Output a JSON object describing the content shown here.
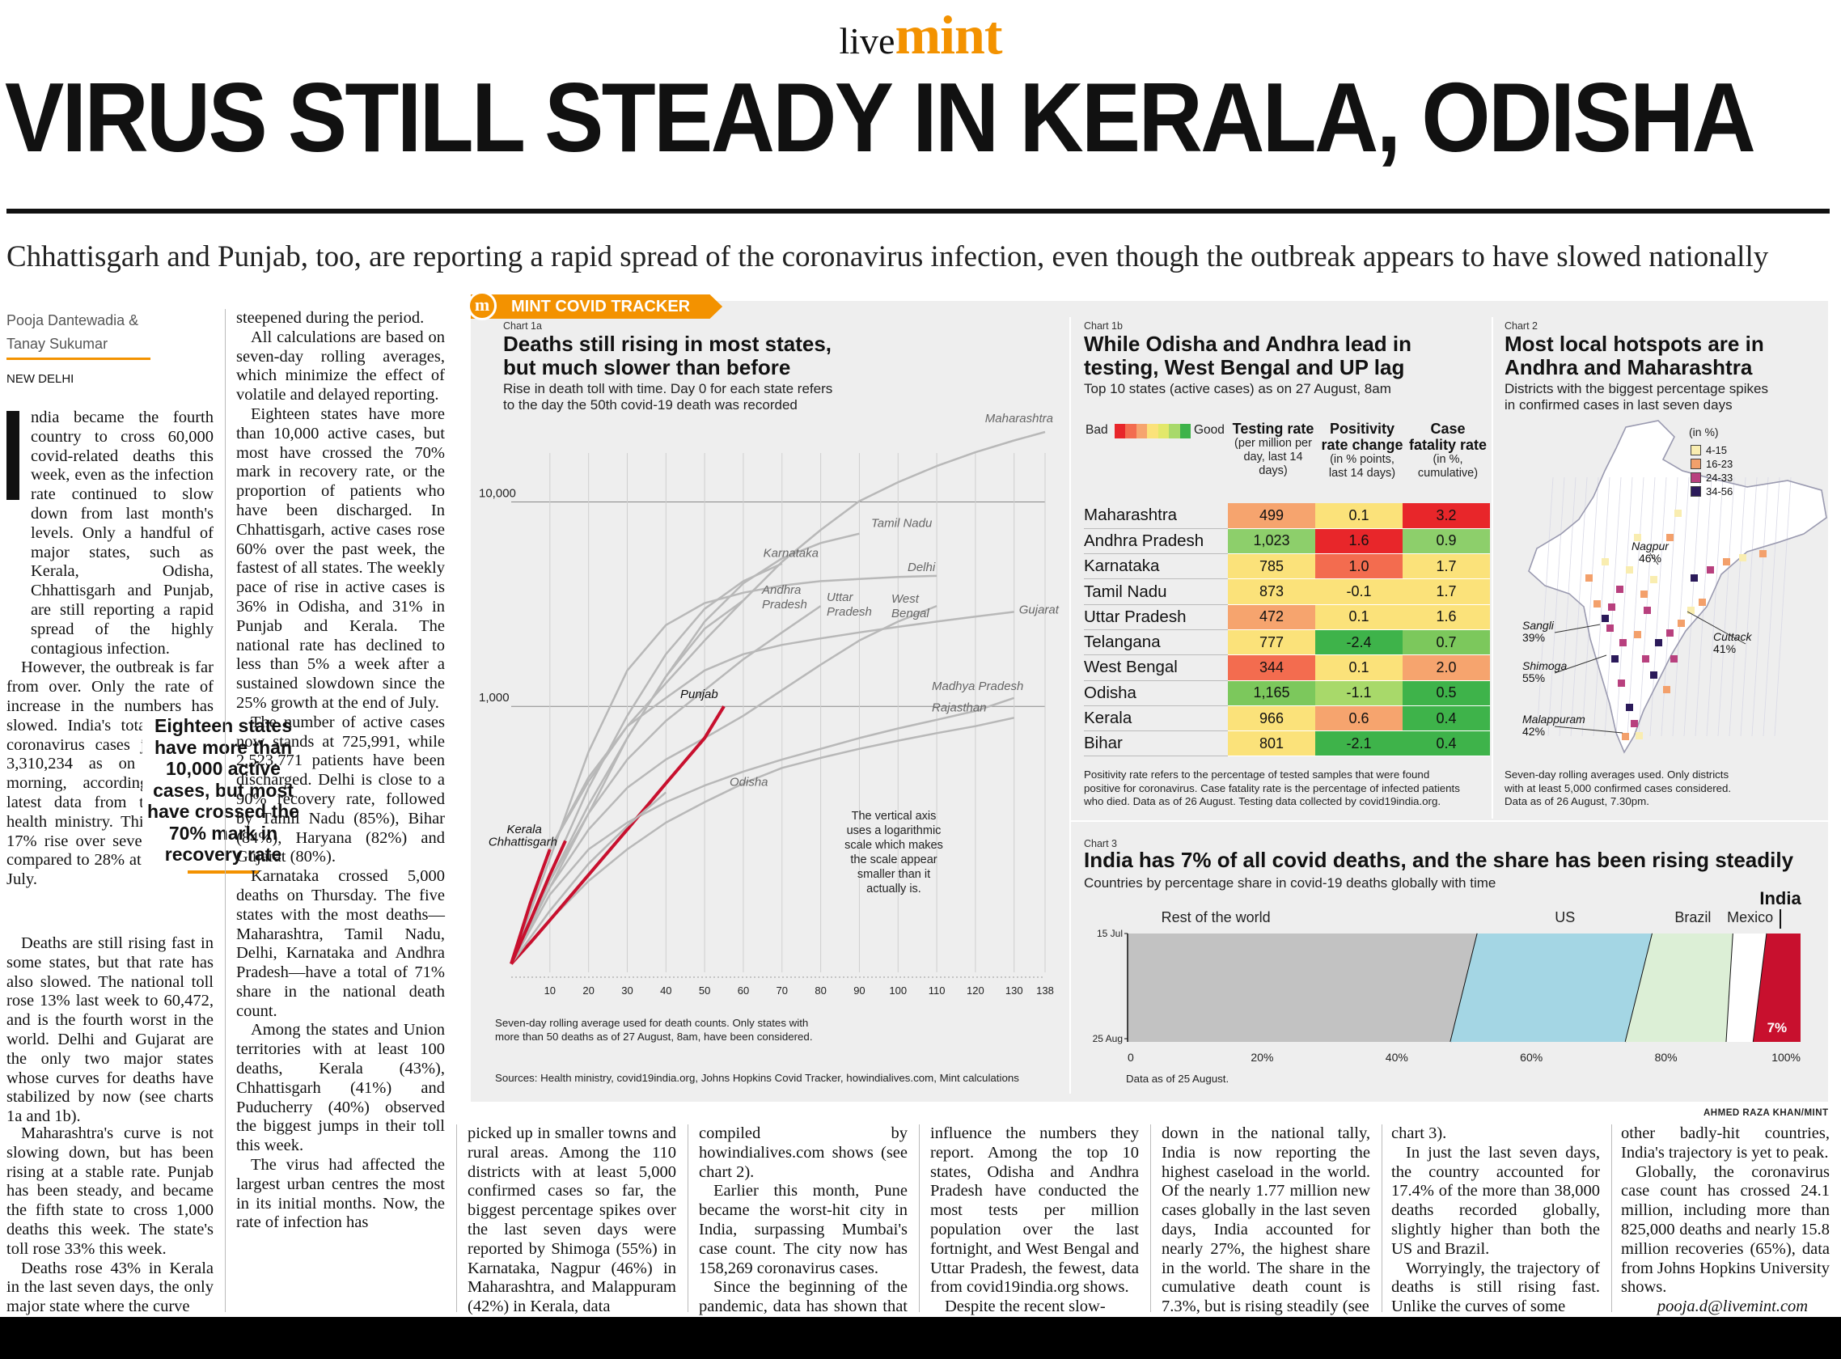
{
  "masthead": {
    "live": "live",
    "mint": "mint"
  },
  "headline": "VIRUS STILL STEADY IN KERALA, ODISHA",
  "subhead": "Chhattisgarh and Punjab, too, are reporting a rapid spread of the coronavirus infection, even though the outbreak appears to have slowed nationally",
  "byline": {
    "author1": "Pooja Dantewadia &",
    "author2": "Tanay Sukumar",
    "dateline": "NEW DELHI"
  },
  "pullquote": "Eighteen states have more than 10,000 active cases, but most have crossed the 70% mark in recovery rate",
  "article": {
    "col1a": "ndia became the fourth country to cross 60,000 covid-related deaths this week, even as the infection rate continued to slow down from last month's levels. Only a handful of major states, such as Kerala, Odisha, Chhattisgarh and Punjab, are still reporting a rapid spread of the highly contagious infection.",
    "col1b": "However, the outbreak is far from over. Only the rate of increase in the numbers has slowed. India's total tally of coronavirus cases jumped to 3,310,234 as on Thursday morning, according to the latest data from the Union health ministry. This marks a 17% rise over seven days, as compared to 28% at the end of July.",
    "col1c": "Deaths are still rising fast in some states, but that rate has also slowed. The national toll rose 13% last week to 60,472, and is the fourth worst in the world. Delhi and Gujarat are the only two major states whose curves for deaths have stabilized by now (see charts 1a and 1b).",
    "col1d": "Maharashtra's curve is not slowing down, but has been rising at a stable rate. Punjab has been steady, and became the fifth state to cross 1,000 deaths this week. The state's toll rose 33% this week.",
    "col1e": "Deaths rose 43% in Kerala in the last seven days, the only major state where the curve",
    "col2a": "steepened during the period.",
    "col2b": "All calculations are based on seven-day rolling averages, which minimize the effect of volatile and delayed reporting.",
    "col2c": "Eighteen states have more than 10,000 active cases, but most have crossed the 70% mark in recovery rate, or the proportion of patients who have been discharged. In Chhattisgarh, active cases rose 60% over the past week, the fastest of all states. The weekly pace of rise in active cases is 36% in Odisha, and 31% in Punjab and Kerala. The national rate has declined to less than 5% a week after a sustained slowdown since the 25% growth at the end of July.",
    "col2d": "The number of active cases now stands at 725,991, while 2,523,771 patients have been discharged. Delhi is close to a 90% recovery rate, followed by Tamil Nadu (85%), Bihar (84%), Haryana (82%) and Gujarat (80%).",
    "col2e": "Karnataka crossed 5,000 deaths on Thursday. The five states with the most deaths—Maharashtra, Tamil Nadu, Delhi, Karnataka and Andhra Pradesh—have a total of 71% share in the national death count.",
    "col2f": "Among the states and Union territories with at least 100 deaths, Kerala (43%), Chhattisgarh (41%) and Puducherry (40%) observed the biggest jumps in their toll this week.",
    "col2g": "The virus had affected the largest urban centres the most in its initial months. Now, the rate of infection has",
    "col3": "picked up in smaller towns and rural areas. Among the 110 districts with at least 5,000 confirmed cases so far, the biggest percentage spikes over the last seven days were reported by Shimoga (55%) in Karnataka, Nagpur (46%) in Maharashtra, and Malappuram (42%) in Kerala, data",
    "col4a": "compiled by howindialives.com shows (see chart 2).",
    "col4b": "Earlier this month, Pune became the worst-hit city in India, surpassing Mumbai's case count. The city now has 158,269 coronavirus cases.",
    "col4c": "Since the beginning of the pandemic, data has shown that testing strategies of states can",
    "col5a": "influence the numbers they report. Among the top 10 states, Odisha and Andhra Pradesh have conducted the most tests per million population over the last fortnight, and West Bengal and Uttar Pradesh, the fewest, data from covid19india.org shows.",
    "col5b": "Despite the recent slow-",
    "col6a": "down in the national tally, India is now reporting the highest caseload in the world. Of the nearly 1.77 million new cases globally in the last seven days, India accounted for nearly 27%, the highest share in the world. The share in the cumulative death count is 7.3%, but is rising steadily (see",
    "col7a": "chart 3).",
    "col7b": "In just the last seven days, the country accounted for 17.4% of the more than 38,000 deaths recorded globally, slightly higher than both the US and Brazil.",
    "col7c": "Worryingly, the trajectory of deaths is still rising fast. Unlike the curves of some",
    "col8a": "other badly-hit countries, India's trajectory is yet to peak.",
    "col8b": "Globally, the coronavirus case count has crossed 24.1 million, including more than 825,000 deaths and nearly 15.8 million recoveries (65%), data from Johns Hopkins University shows.",
    "col8c": "pooja.d@livemint.com"
  },
  "tracker": {
    "tag": "MINT COVID TRACKER",
    "logo": "m",
    "source": "Sources: Health ministry, covid19india.org, Johns Hopkins Covid Tracker, howindialives.com, Mint calculations",
    "credit": "AHMED RAZA KHAN/MINT"
  },
  "chart1a": {
    "tag": "Chart 1a",
    "title1": "Deaths still rising in most states,",
    "title2": "but much slower than before",
    "sub1": "Rise in death toll with time. Day 0 for each state refers",
    "sub2": "to the day the 50th covid-19 death was recorded",
    "note1": "Seven-day rolling average used for death counts. Only states with",
    "note2": "more than 50 deaths as of 27 August, 8am, have been considered.",
    "annotation": [
      "The vertical axis",
      "uses a logarithmic",
      "scale which makes",
      "the scale appear",
      "smaller than it",
      "actually is."
    ]
  },
  "chart1b": {
    "tag": "Chart 1b",
    "title1": "While Odisha and Andhra lead in",
    "title2": "testing, West Bengal and UP lag",
    "sub": "Top 10 states (active cases) as on 27 August, 8am",
    "bad": "Bad",
    "good": "Good",
    "headers": [
      {
        "title": "Testing rate",
        "sub": "(per million per day, last 14 days)"
      },
      {
        "title": "Positivity rate change",
        "sub": "(in % points, last 14 days)"
      },
      {
        "title": "Case fatality rate",
        "sub": "(in %, cumulative)"
      }
    ],
    "rows": [
      {
        "state": "Maharashtra",
        "testing": "499",
        "positivity": "0.1",
        "cfr": "3.2",
        "c": [
          "#f6a46e",
          "#fbe27a",
          "#e8262a"
        ]
      },
      {
        "state": "Andhra Pradesh",
        "testing": "1,023",
        "positivity": "1.6",
        "cfr": "0.9",
        "c": [
          "#8dcf6b",
          "#e8262a",
          "#8dcf6b"
        ]
      },
      {
        "state": "Karnataka",
        "testing": "785",
        "positivity": "1.0",
        "cfr": "1.7",
        "c": [
          "#fbe27a",
          "#f36c4f",
          "#fbe27a"
        ]
      },
      {
        "state": "Tamil Nadu",
        "testing": "873",
        "positivity": "-0.1",
        "cfr": "1.7",
        "c": [
          "#fbe27a",
          "#fbe27a",
          "#fbe27a"
        ]
      },
      {
        "state": "Uttar Pradesh",
        "testing": "472",
        "positivity": "0.1",
        "cfr": "1.6",
        "c": [
          "#f6a46e",
          "#fbe27a",
          "#fbe27a"
        ]
      },
      {
        "state": "Telangana",
        "testing": "777",
        "positivity": "-2.4",
        "cfr": "0.7",
        "c": [
          "#fbe27a",
          "#3eb34a",
          "#7cc85c"
        ]
      },
      {
        "state": "West Bengal",
        "testing": "344",
        "positivity": "0.1",
        "cfr": "2.0",
        "c": [
          "#f36c4f",
          "#fbe27a",
          "#f6a46e"
        ]
      },
      {
        "state": "Odisha",
        "testing": "1,165",
        "positivity": "-1.1",
        "cfr": "0.5",
        "c": [
          "#7cc85c",
          "#a8d96a",
          "#3eb34a"
        ]
      },
      {
        "state": "Kerala",
        "testing": "966",
        "positivity": "0.6",
        "cfr": "0.4",
        "c": [
          "#fbe27a",
          "#f6a46e",
          "#3eb34a"
        ]
      },
      {
        "state": "Bihar",
        "testing": "801",
        "positivity": "-2.1",
        "cfr": "0.4",
        "c": [
          "#fbe27a",
          "#3eb34a",
          "#3eb34a"
        ]
      }
    ],
    "scale_colors": [
      "#e8262a",
      "#f36c4f",
      "#f6a46e",
      "#fbe27a",
      "#e2e86a",
      "#a8d96a",
      "#3eb34a"
    ],
    "note1": "Positivity rate refers to the percentage of tested samples that were found",
    "note2": "positive for coronavirus. Case fatality rate is the percentage of infected patients",
    "note3": "who died. Data as of 26 August. Testing data collected by covid19india.org."
  },
  "chart2": {
    "tag": "Chart 2",
    "title1": "Most local hotspots are in",
    "title2": "Andhra and Maharashtra",
    "sub1": "Districts with the biggest percentage spikes",
    "sub2": "in confirmed cases in last seven days",
    "legend_title": "(in %)",
    "legend": [
      {
        "label": "4-15",
        "color": "#f9edb0"
      },
      {
        "label": "16-23",
        "color": "#f3a06b"
      },
      {
        "label": "24-33",
        "color": "#b8407e"
      },
      {
        "label": "34-56",
        "color": "#2b1a5a"
      }
    ],
    "callouts": [
      {
        "name": "Nagpur",
        "pct": "46%"
      },
      {
        "name": "Sangli",
        "pct": "39%"
      },
      {
        "name": "Cuttack",
        "pct": "41%"
      },
      {
        "name": "Shimoga",
        "pct": "55%"
      },
      {
        "name": "Malappuram",
        "pct": "42%"
      }
    ],
    "note1": "Seven-day rolling averages used. Only districts",
    "note2": "with at least 5,000 confirmed cases considered.",
    "note3": "Data as of 26 August, 7.30pm."
  },
  "chart3": {
    "tag": "Chart 3",
    "title": "India has 7% of all covid deaths, and the share has been rising steadily",
    "sub": "Countries by percentage share in covid-19 deaths globally with time",
    "note": "Data as of 25 August.",
    "india_label": "India",
    "india_value": "7%"
  },
  "chart_data": [
    {
      "type": "line",
      "title": "Deaths still rising in most states, but much slower than before",
      "xlabel": "",
      "ylabel": "",
      "x_ticks": [
        10,
        20,
        30,
        40,
        50,
        60,
        70,
        80,
        90,
        100,
        110,
        120,
        130,
        138
      ],
      "xlim": [
        0,
        138
      ],
      "y_ticks": [
        "1,000",
        "10,000"
      ],
      "ylim": [
        50,
        30000
      ],
      "y_scale": "log",
      "grid": true,
      "series": [
        {
          "name": "Maharashtra",
          "x": [
            0,
            10,
            20,
            30,
            40,
            50,
            60,
            70,
            80,
            90,
            100,
            110,
            120,
            130,
            138
          ],
          "y": [
            55,
            200,
            430,
            800,
            1300,
            2100,
            3300,
            5100,
            7300,
            10100,
            12500,
            15000,
            17500,
            20000,
            22000
          ]
        },
        {
          "name": "Tamil Nadu",
          "x": [
            0,
            10,
            20,
            30,
            40,
            50,
            60,
            70,
            80,
            90
          ],
          "y": [
            55,
            140,
            330,
            700,
            1400,
            2600,
            4000,
            5300,
            6300,
            7000
          ]
        },
        {
          "name": "Karnataka",
          "x": [
            0,
            10,
            20,
            30,
            40,
            50,
            60,
            70
          ],
          "y": [
            55,
            150,
            400,
            900,
            1800,
            3000,
            4100,
            5000
          ]
        },
        {
          "name": "Delhi",
          "x": [
            0,
            10,
            20,
            30,
            40,
            50,
            60,
            70,
            80,
            90,
            100,
            110
          ],
          "y": [
            55,
            180,
            600,
            1500,
            2500,
            3200,
            3600,
            3900,
            4100,
            4200,
            4300,
            4350
          ]
        },
        {
          "name": "Andhra Pradesh",
          "x": [
            0,
            10,
            20,
            30,
            40,
            50,
            60
          ],
          "y": [
            55,
            130,
            300,
            700,
            1400,
            2400,
            3300
          ]
        },
        {
          "name": "Uttar Pradesh",
          "x": [
            0,
            10,
            20,
            30,
            40,
            50,
            60,
            70,
            80
          ],
          "y": [
            55,
            140,
            300,
            550,
            850,
            1200,
            1700,
            2300,
            3100
          ]
        },
        {
          "name": "West Bengal",
          "x": [
            0,
            10,
            20,
            30,
            40,
            50,
            60,
            70,
            80,
            90,
            100,
            110
          ],
          "y": [
            55,
            130,
            250,
            400,
            550,
            700,
            900,
            1200,
            1600,
            2100,
            2600,
            3100
          ]
        },
        {
          "name": "Gujarat",
          "x": [
            0,
            10,
            20,
            30,
            40,
            50,
            60,
            70,
            80,
            90,
            100,
            110,
            120,
            130
          ],
          "y": [
            55,
            200,
            450,
            800,
            1100,
            1500,
            1800,
            2000,
            2150,
            2300,
            2450,
            2600,
            2750,
            2900
          ]
        },
        {
          "name": "Madhya Pradesh",
          "x": [
            0,
            10,
            20,
            30,
            40,
            50,
            60,
            70,
            80,
            90,
            100,
            110,
            120,
            130
          ],
          "y": [
            55,
            120,
            200,
            270,
            340,
            410,
            480,
            550,
            620,
            700,
            780,
            860,
            950,
            1100
          ]
        },
        {
          "name": "Rajasthan",
          "x": [
            0,
            10,
            20,
            30,
            40,
            50,
            60,
            70,
            80,
            90,
            100,
            110,
            120,
            130
          ],
          "y": [
            55,
            90,
            140,
            200,
            270,
            340,
            420,
            500,
            560,
            620,
            680,
            740,
            800,
            880
          ]
        },
        {
          "name": "Punjab",
          "x": [
            0,
            5,
            10,
            20,
            30,
            40,
            50,
            55
          ],
          "y": [
            55,
            70,
            90,
            150,
            250,
            420,
            700,
            1000
          ]
        },
        {
          "name": "Odisha",
          "x": [
            0,
            10,
            20,
            30,
            40
          ],
          "y": [
            55,
            100,
            170,
            260,
            380
          ]
        },
        {
          "name": "Kerala",
          "x": [
            0,
            5,
            10
          ],
          "y": [
            55,
            110,
            200
          ]
        },
        {
          "name": "Chhattisgarh",
          "x": [
            0,
            5,
            10,
            14
          ],
          "y": [
            55,
            90,
            150,
            220
          ]
        }
      ]
    },
    {
      "type": "area",
      "title": "India has 7% of all covid deaths, and the share has been rising steadily",
      "x_ticks": [
        "0",
        "20%",
        "40%",
        "60%",
        "80%",
        "100%"
      ],
      "xlim": [
        0,
        100
      ],
      "y_ticks": [
        "15 Jul",
        "25 Aug"
      ],
      "series": [
        {
          "name": "Rest of the world",
          "start": 52,
          "end": 48
        },
        {
          "name": "US",
          "start": 26,
          "end": 26
        },
        {
          "name": "Brazil",
          "start": 12,
          "end": 15
        },
        {
          "name": "Mexico",
          "start": 5,
          "end": 4
        },
        {
          "name": "India",
          "start": 5,
          "end": 7
        }
      ]
    }
  ]
}
